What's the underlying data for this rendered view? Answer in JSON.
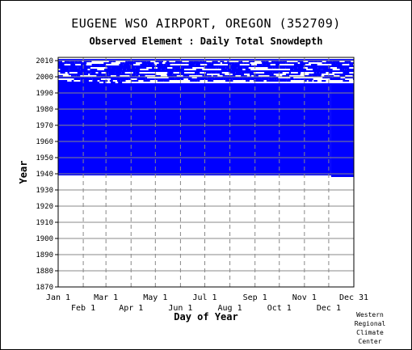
{
  "header": {
    "title": "EUGENE WSO AIRPORT, OREGON   (352709)",
    "subtitle": "Observed Element : Daily Total Snowdepth"
  },
  "credit": [
    "Western",
    "Regional",
    "Climate",
    "Center"
  ],
  "colors": {
    "data": "#0000ff",
    "grid": "#888888",
    "axis": "#000000"
  },
  "chart_data": {
    "type": "heatmap",
    "title": "EUGENE WSO AIRPORT, OREGON   (352709)",
    "subtitle": "Observed Element : Daily Total Snowdepth",
    "xlabel": "Day of Year",
    "ylabel": "Year",
    "xlim": [
      1,
      366
    ],
    "ylim": [
      1870,
      2012
    ],
    "x_ticks_top_row": [
      "Jan 1",
      "Mar 1",
      "May 1",
      "Jul 1",
      "Sep 1",
      "Nov 1",
      "Dec 31"
    ],
    "x_ticks_bottom_row": [
      "Feb 1",
      "Apr 1",
      "Jun 1",
      "Aug 1",
      "Oct 1",
      "Dec 1"
    ],
    "x_tick_days": [
      1,
      32,
      60,
      91,
      121,
      152,
      182,
      213,
      244,
      274,
      305,
      335,
      366
    ],
    "y_ticks": [
      1870,
      1880,
      1890,
      1900,
      1910,
      1920,
      1930,
      1940,
      1950,
      1960,
      1970,
      1980,
      1990,
      2000,
      2010
    ],
    "grid": true,
    "legend": "none",
    "filled_periods": [
      {
        "years": [
          1939,
          1995
        ],
        "days": [
          1,
          338
        ]
      },
      {
        "years": [
          1938,
          1995
        ],
        "days": [
          338,
          366
        ]
      },
      {
        "years": [
          1995,
          1996
        ],
        "days": [
          1,
          366
        ]
      }
    ],
    "partial_rows": [
      {
        "year": 1996,
        "days": [
          1,
          52
        ],
        "pattern": "solid"
      },
      {
        "year": 1996,
        "days": [
          52,
          80
        ],
        "pattern": "sparse"
      },
      {
        "year": 1997,
        "days": [
          1,
          366
        ],
        "pattern": "sparse"
      },
      {
        "year": 1998,
        "days": [
          1,
          366
        ],
        "pattern": "mixed"
      },
      {
        "year": 1999,
        "days": [
          1,
          366
        ],
        "pattern": "mixed"
      },
      {
        "year": 2000,
        "days": [
          1,
          366
        ],
        "pattern": "sparse"
      },
      {
        "year": 2001,
        "days": [
          1,
          366
        ],
        "pattern": "mixed"
      },
      {
        "year": 2002,
        "days": [
          1,
          366
        ],
        "pattern": "sparse"
      },
      {
        "year": 2003,
        "days": [
          1,
          366
        ],
        "pattern": "solid"
      },
      {
        "year": 2004,
        "days": [
          1,
          366
        ],
        "pattern": "mixed"
      },
      {
        "year": 2005,
        "days": [
          1,
          366
        ],
        "pattern": "mixed"
      },
      {
        "year": 2006,
        "days": [
          1,
          366
        ],
        "pattern": "solid"
      },
      {
        "year": 2007,
        "days": [
          1,
          366
        ],
        "pattern": "sparse"
      },
      {
        "year": 2008,
        "days": [
          1,
          366
        ],
        "pattern": "mixed"
      },
      {
        "year": 2009,
        "days": [
          1,
          366
        ],
        "pattern": "sparse"
      },
      {
        "year": 2010,
        "days": [
          1,
          366
        ],
        "pattern": "solid"
      }
    ]
  }
}
